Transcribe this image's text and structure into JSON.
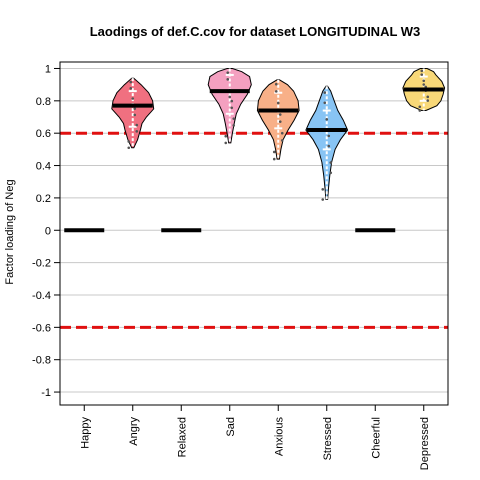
{
  "chart_data": {
    "type": "violin",
    "title": "Laodings of def.C.cov for dataset LONGITUDINAL W3",
    "xlabel": "",
    "ylabel": "Factor loading of Neg",
    "ylim": [
      -1.08,
      1.04
    ],
    "y_ticks": [
      "-1",
      "-0.8",
      "-0.6",
      "-0.4",
      "-0.2",
      "0",
      "0.2",
      "0.4",
      "0.6",
      "0.8",
      "1"
    ],
    "grid": true,
    "reference_lines": [
      0.6,
      -0.6
    ],
    "reference_line_color": "#e01010",
    "categories": [
      "Happy",
      "Angry",
      "Relaxed",
      "Sad",
      "Anxious",
      "Stressed",
      "Cheerful",
      "Depressed"
    ],
    "items": [
      {
        "name": "Happy",
        "median": 0,
        "fixed": true
      },
      {
        "name": "Angry",
        "median": 0.77,
        "min": 0.51,
        "max": 0.94,
        "q1": 0.64,
        "q3": 0.86,
        "color": "#f07080",
        "profile": [
          [
            0.51,
            0.05
          ],
          [
            0.56,
            0.22
          ],
          [
            0.62,
            0.35
          ],
          [
            0.66,
            0.42
          ],
          [
            0.7,
            0.62
          ],
          [
            0.75,
            0.95
          ],
          [
            0.8,
            0.9
          ],
          [
            0.85,
            0.72
          ],
          [
            0.9,
            0.38
          ],
          [
            0.94,
            0.05
          ]
        ]
      },
      {
        "name": "Relaxed",
        "median": 0,
        "fixed": true
      },
      {
        "name": "Sad",
        "median": 0.86,
        "min": 0.54,
        "max": 1.0,
        "q1": 0.72,
        "q3": 0.96,
        "color": "#f4a0c0",
        "profile": [
          [
            0.54,
            0.05
          ],
          [
            0.6,
            0.12
          ],
          [
            0.66,
            0.2
          ],
          [
            0.72,
            0.3
          ],
          [
            0.78,
            0.5
          ],
          [
            0.84,
            0.8
          ],
          [
            0.9,
            0.98
          ],
          [
            0.95,
            0.9
          ],
          [
            0.98,
            0.55
          ],
          [
            1.0,
            0.12
          ]
        ]
      },
      {
        "name": "Anxious",
        "median": 0.74,
        "min": 0.44,
        "max": 0.93,
        "q1": 0.63,
        "q3": 0.85,
        "color": "#f8b088",
        "profile": [
          [
            0.44,
            0.05
          ],
          [
            0.5,
            0.12
          ],
          [
            0.56,
            0.22
          ],
          [
            0.62,
            0.45
          ],
          [
            0.68,
            0.72
          ],
          [
            0.74,
            0.95
          ],
          [
            0.8,
            0.9
          ],
          [
            0.86,
            0.7
          ],
          [
            0.9,
            0.42
          ],
          [
            0.93,
            0.05
          ]
        ]
      },
      {
        "name": "Stressed",
        "median": 0.62,
        "min": 0.19,
        "max": 0.89,
        "q1": 0.5,
        "q3": 0.74,
        "color": "#88c4f4",
        "profile": [
          [
            0.19,
            0.04
          ],
          [
            0.26,
            0.08
          ],
          [
            0.34,
            0.14
          ],
          [
            0.42,
            0.22
          ],
          [
            0.5,
            0.38
          ],
          [
            0.56,
            0.62
          ],
          [
            0.62,
            0.95
          ],
          [
            0.68,
            0.75
          ],
          [
            0.74,
            0.5
          ],
          [
            0.8,
            0.34
          ],
          [
            0.86,
            0.18
          ],
          [
            0.89,
            0.04
          ]
        ]
      },
      {
        "name": "Cheerful",
        "median": 0,
        "fixed": true
      },
      {
        "name": "Depressed",
        "median": 0.87,
        "min": 0.74,
        "max": 1.0,
        "q1": 0.8,
        "q3": 0.95,
        "color": "#f8d878",
        "profile": [
          [
            0.74,
            0.1
          ],
          [
            0.77,
            0.6
          ],
          [
            0.8,
            0.78
          ],
          [
            0.84,
            0.88
          ],
          [
            0.88,
            0.95
          ],
          [
            0.92,
            0.82
          ],
          [
            0.96,
            0.55
          ],
          [
            0.98,
            0.45
          ],
          [
            1.0,
            0.15
          ]
        ]
      }
    ]
  }
}
